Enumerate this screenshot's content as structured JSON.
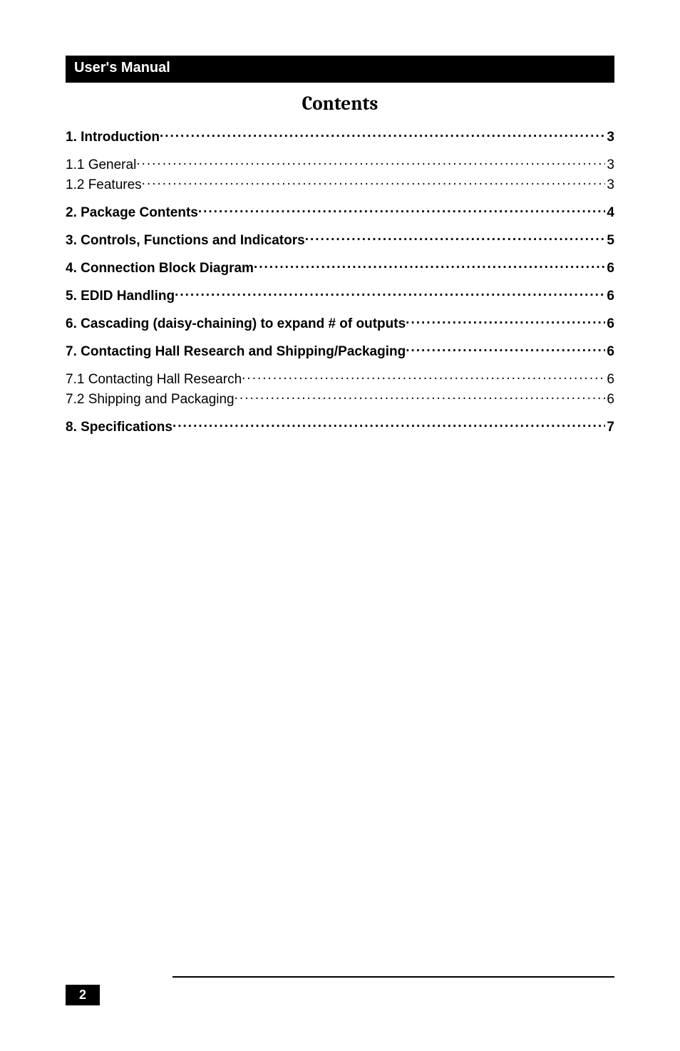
{
  "header": {
    "title": "User's Manual"
  },
  "contents_heading": "Contents",
  "toc": {
    "entries": [
      {
        "title": "1. Introduction",
        "page": "3",
        "bold": true,
        "section": false
      },
      {
        "title": "1.1 General",
        "page": "3",
        "bold": false,
        "section": true
      },
      {
        "title": "1.2 Features",
        "page": "3",
        "bold": false,
        "section": false
      },
      {
        "title": "2. Package Contents",
        "page": "4",
        "bold": true,
        "section": true
      },
      {
        "title": "3. Controls, Functions and Indicators",
        "page": "5",
        "bold": true,
        "section": true
      },
      {
        "title": "4. Connection Block Diagram",
        "page": "6",
        "bold": true,
        "section": true
      },
      {
        "title": "5. EDID Handling",
        "page": "6",
        "bold": true,
        "section": true
      },
      {
        "title": "6. Cascading (daisy-chaining) to expand # of outputs",
        "page": "6",
        "bold": true,
        "section": true
      },
      {
        "title": "7. Contacting Hall Research and Shipping/Packaging",
        "page": "6",
        "bold": true,
        "section": true
      },
      {
        "title": "7.1 Contacting Hall Research",
        "page": "6",
        "bold": false,
        "section": true
      },
      {
        "title": "7.2 Shipping and Packaging",
        "page": "6",
        "bold": false,
        "section": false
      },
      {
        "title": "8. Specifications",
        "page": "7",
        "bold": true,
        "section": true
      }
    ]
  },
  "footer": {
    "page_number": "2"
  },
  "colors": {
    "background": "#ffffff",
    "header_bg": "#000000",
    "header_text": "#ffffff",
    "body_text": "#000000",
    "footer_box_bg": "#000000",
    "footer_box_text": "#ffffff"
  },
  "typography": {
    "body_font": "Arial, Helvetica, sans-serif",
    "heading_font": "Cambria, Georgia, serif",
    "header_size_pt": 15,
    "contents_title_size_pt": 20,
    "toc_size_pt": 14
  }
}
